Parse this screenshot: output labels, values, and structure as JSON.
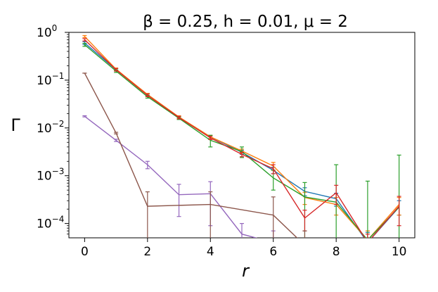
{
  "chart_data": {
    "type": "line",
    "title": "β = 0.25, h = 0.01, μ = 2",
    "xlabel": "r",
    "ylabel": "Γ",
    "yscale": "log",
    "xlim": [
      -0.5,
      10.5
    ],
    "ylim_log10": [
      -4.3,
      0.0
    ],
    "xticks": [
      0,
      2,
      4,
      6,
      8,
      10
    ],
    "yticks": [
      {
        "mantissa": "10",
        "exponent": "0",
        "value": 1
      },
      {
        "mantissa": "10",
        "exponent": "−1",
        "value": 0.1
      },
      {
        "mantissa": "10",
        "exponent": "−2",
        "value": 0.01
      },
      {
        "mantissa": "10",
        "exponent": "−3",
        "value": 0.001
      },
      {
        "mantissa": "10",
        "exponent": "−4",
        "value": 0.0001
      }
    ],
    "grid": false,
    "legend": "none",
    "series": [
      {
        "color": "#1f77b4",
        "x": [
          0,
          1,
          2,
          3,
          4,
          5,
          6,
          7,
          8,
          9,
          10
        ],
        "y": [
          0.6,
          0.165,
          0.05,
          0.0168,
          0.0065,
          0.0031,
          0.0013,
          0.00047,
          0.00033,
          4e-05,
          0.00022
        ],
        "err_low": [
          0.56,
          0.155,
          0.047,
          0.016,
          0.006,
          0.0028,
          0.0011,
          0.00038,
          0.00023,
          1.8e-05,
          0.00015
        ],
        "err_high": [
          0.64,
          0.175,
          0.053,
          0.0176,
          0.007,
          0.0034,
          0.0015,
          0.00056,
          0.00043,
          6.5e-05,
          0.0003
        ]
      },
      {
        "color": "#ff7f0e",
        "x": [
          0,
          1,
          2,
          3,
          4,
          5,
          6,
          7,
          8,
          9,
          10
        ],
        "y": [
          0.82,
          0.17,
          0.05,
          0.017,
          0.0065,
          0.0033,
          0.0016,
          0.00035,
          0.00025,
          4.5e-05,
          0.00025
        ],
        "err_low": [
          0.78,
          0.16,
          0.047,
          0.016,
          0.006,
          0.003,
          0.0013,
          0.00025,
          0.00015,
          2.5e-05,
          0.00015
        ],
        "err_high": [
          0.86,
          0.18,
          0.053,
          0.018,
          0.007,
          0.0036,
          0.0019,
          0.00045,
          0.00035,
          7e-05,
          0.00035
        ]
      },
      {
        "color": "#2ca02c",
        "x": [
          0,
          1,
          2,
          3,
          4,
          5,
          6,
          7,
          8,
          9,
          10
        ],
        "y": [
          0.55,
          0.155,
          0.045,
          0.016,
          0.0055,
          0.0032,
          0.0009,
          0.00036,
          0.00028,
          4.5e-05,
          0.00022
        ],
        "err_low": [
          0.51,
          0.145,
          0.042,
          0.015,
          0.004,
          0.0024,
          0.0005,
          1e-05,
          1e-05,
          1e-05,
          1e-05
        ],
        "err_high": [
          0.59,
          0.165,
          0.048,
          0.017,
          0.007,
          0.004,
          0.0013,
          0.00072,
          0.0017,
          0.00077,
          0.0027
        ]
      },
      {
        "color": "#d62728",
        "x": [
          0,
          1,
          2,
          3,
          4,
          5,
          6,
          7,
          8,
          9,
          10
        ],
        "y": [
          0.7,
          0.165,
          0.048,
          0.0165,
          0.0062,
          0.0028,
          0.0014,
          0.00013,
          0.00044,
          4e-05,
          0.00023
        ],
        "err_low": [
          0.66,
          0.155,
          0.045,
          0.0155,
          0.0057,
          0.0025,
          0.0011,
          7e-05,
          0.00025,
          2e-05,
          9e-05
        ],
        "err_high": [
          0.74,
          0.175,
          0.051,
          0.0175,
          0.0067,
          0.0031,
          0.0017,
          0.00019,
          0.00063,
          6e-05,
          0.00037
        ]
      },
      {
        "color": "#9467bd",
        "x": [
          0,
          1,
          2,
          3,
          4,
          5,
          6
        ],
        "y": [
          0.0175,
          0.0055,
          0.0017,
          0.0004,
          0.00042,
          6e-05,
          4e-05
        ],
        "err_low": [
          0.017,
          0.0052,
          0.0014,
          0.00014,
          9e-05,
          2e-05,
          1e-05
        ],
        "err_high": [
          0.018,
          0.0058,
          0.002,
          0.00066,
          0.00075,
          0.0001,
          7e-05
        ]
      },
      {
        "color": "#8c564b",
        "x": [
          0,
          1,
          2,
          4,
          6,
          7
        ],
        "y": [
          0.14,
          0.0078,
          0.00023,
          0.00025,
          0.00015,
          3.5e-05
        ],
        "err_low": [
          0.14,
          0.0075,
          1e-05,
          4e-05,
          1e-05,
          1e-05
        ],
        "err_high": [
          0.14,
          0.0081,
          0.00046,
          0.00046,
          0.00036,
          7e-05
        ]
      }
    ]
  }
}
